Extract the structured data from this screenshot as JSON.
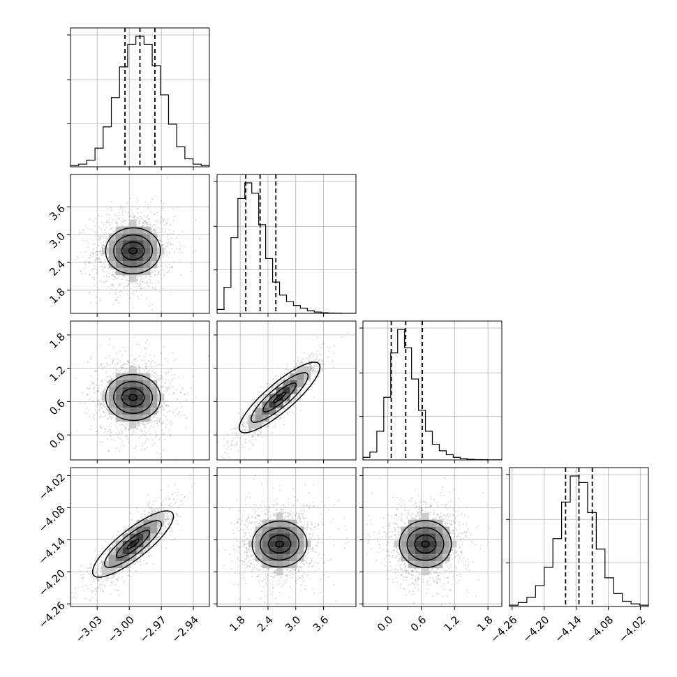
{
  "chart_data": {
    "type": "corner",
    "parameters": [
      {
        "name": "",
        "quantiles": [
          -3.004,
          -2.99,
          -2.976
        ],
        "hist_range": [
          -3.055,
          -2.925
        ],
        "ticks": [
          -3.03,
          -3.0,
          -2.97,
          -2.94
        ],
        "tick_labels": [
          "−3.03",
          "−3.00",
          "−2.97",
          "−2.94"
        ]
      },
      {
        "name": "",
        "quantiles": [
          1.92,
          2.23,
          2.57
        ],
        "hist_range": [
          1.3,
          4.3
        ],
        "ticks": [
          1.8,
          2.4,
          3.0,
          3.6
        ],
        "tick_labels": [
          "1.8",
          "2.4",
          "3.0",
          "3.6"
        ]
      },
      {
        "name": "",
        "quantiles": [
          0.06,
          0.32,
          0.62
        ],
        "hist_range": [
          -0.45,
          2.05
        ],
        "ticks": [
          0.0,
          0.6,
          1.2,
          1.8
        ],
        "tick_labels": [
          "0.0",
          "0.6",
          "1.2",
          "1.8"
        ]
      },
      {
        "name": "",
        "quantiles": [
          -4.16,
          -4.135,
          -4.11
        ],
        "hist_range": [
          -4.265,
          -4.005
        ],
        "ticks": [
          -4.26,
          -4.2,
          -4.14,
          -4.08,
          -4.02
        ],
        "tick_labels": [
          "−4.26",
          "−4.20",
          "−4.14",
          "−4.08",
          "−4.02"
        ]
      }
    ],
    "histograms": [
      [
        1,
        2,
        5,
        14,
        30,
        52,
        75,
        92,
        98,
        92,
        76,
        54,
        32,
        15,
        6,
        2,
        1
      ],
      [
        3,
        20,
        58,
        88,
        100,
        92,
        68,
        42,
        24,
        14,
        9,
        6,
        4,
        2,
        1,
        0.5,
        0.3,
        0.2,
        0.1,
        0.05
      ],
      [
        2,
        6,
        22,
        48,
        82,
        100,
        86,
        62,
        38,
        22,
        12,
        7,
        4,
        2,
        1,
        0.5,
        0.3,
        0.2,
        0.1,
        0.05
      ],
      [
        1,
        3,
        7,
        16,
        30,
        52,
        80,
        100,
        95,
        72,
        44,
        22,
        10,
        4,
        2,
        1
      ]
    ],
    "correlations": {
      "1-0": 0.05,
      "2-0": -0.05,
      "2-1": 0.9,
      "3-0": 0.85,
      "3-1": 0.05,
      "3-2": 0.0
    },
    "grid": true,
    "legend": "none"
  }
}
